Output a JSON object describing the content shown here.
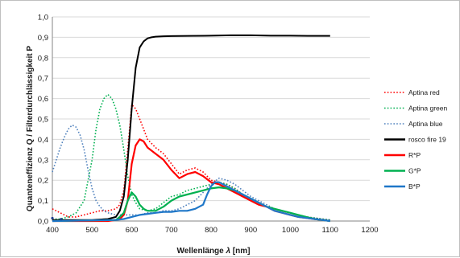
{
  "chart_data": {
    "type": "line",
    "xlabel_main": "Wellenlänge ",
    "xlabel_symbol": "λ",
    "xlabel_unit": " [nm]",
    "ylabel": "Quanteneffizienz Q / Filterdurchlässigkeit P",
    "xlim": [
      400,
      1200
    ],
    "ylim": [
      0,
      1.0
    ],
    "x_ticks": [
      "400",
      "500",
      "600",
      "700",
      "800",
      "900",
      "1000",
      "1100",
      "1200"
    ],
    "y_ticks": [
      "0,0",
      "0,1",
      "0,2",
      "0,3",
      "0,4",
      "0,5",
      "0,6",
      "0,7",
      "0,8",
      "0,9",
      "1,0"
    ],
    "grid": true,
    "legend_position": "right",
    "series": [
      {
        "name": "Aptina red",
        "color": "#ff0000",
        "style": "dotted",
        "x": [
          400,
          420,
          440,
          460,
          480,
          500,
          520,
          540,
          560,
          570,
          580,
          590,
          600,
          610,
          620,
          630,
          640,
          660,
          680,
          700,
          720,
          740,
          760,
          780,
          800,
          820,
          840,
          860,
          880,
          900,
          920,
          940,
          960,
          980,
          1000,
          1020,
          1040,
          1060,
          1080,
          1100
        ],
        "y": [
          0.06,
          0.04,
          0.02,
          0.02,
          0.03,
          0.04,
          0.05,
          0.05,
          0.06,
          0.08,
          0.15,
          0.35,
          0.57,
          0.55,
          0.5,
          0.45,
          0.4,
          0.36,
          0.33,
          0.28,
          0.23,
          0.25,
          0.26,
          0.24,
          0.2,
          0.19,
          0.18,
          0.16,
          0.13,
          0.11,
          0.09,
          0.07,
          0.06,
          0.05,
          0.04,
          0.03,
          0.02,
          0.015,
          0.01,
          0.005
        ]
      },
      {
        "name": "Aptina green",
        "color": "#00b050",
        "style": "dotted",
        "x": [
          400,
          420,
          440,
          460,
          480,
          500,
          510,
          520,
          530,
          540,
          550,
          560,
          570,
          580,
          590,
          600,
          610,
          620,
          640,
          660,
          680,
          700,
          720,
          740,
          760,
          780,
          800,
          820,
          840,
          860,
          880,
          900,
          920,
          940,
          960,
          980,
          1000,
          1020,
          1040,
          1060,
          1080,
          1100
        ],
        "y": [
          0.01,
          0.01,
          0.02,
          0.04,
          0.1,
          0.3,
          0.45,
          0.55,
          0.6,
          0.62,
          0.6,
          0.55,
          0.47,
          0.35,
          0.22,
          0.13,
          0.09,
          0.06,
          0.05,
          0.06,
          0.09,
          0.12,
          0.13,
          0.15,
          0.16,
          0.17,
          0.18,
          0.19,
          0.18,
          0.16,
          0.13,
          0.11,
          0.09,
          0.07,
          0.06,
          0.05,
          0.04,
          0.03,
          0.02,
          0.015,
          0.01,
          0.005
        ]
      },
      {
        "name": "Aptina blue",
        "color": "#4f81bd",
        "style": "dotted",
        "x": [
          400,
          410,
          420,
          430,
          440,
          450,
          460,
          470,
          480,
          490,
          500,
          510,
          520,
          530,
          540,
          560,
          580,
          600,
          620,
          640,
          660,
          680,
          700,
          720,
          740,
          760,
          780,
          800,
          820,
          840,
          860,
          880,
          900,
          920,
          940,
          960,
          980,
          1000,
          1020,
          1040,
          1060,
          1080,
          1100
        ],
        "y": [
          0.24,
          0.3,
          0.36,
          0.41,
          0.45,
          0.47,
          0.46,
          0.42,
          0.35,
          0.25,
          0.16,
          0.1,
          0.07,
          0.05,
          0.04,
          0.03,
          0.03,
          0.03,
          0.03,
          0.04,
          0.04,
          0.05,
          0.05,
          0.06,
          0.08,
          0.1,
          0.14,
          0.18,
          0.21,
          0.2,
          0.18,
          0.15,
          0.12,
          0.1,
          0.08,
          0.06,
          0.05,
          0.04,
          0.03,
          0.02,
          0.015,
          0.01,
          0.005
        ]
      },
      {
        "name": "rosco fire 19",
        "color": "#000000",
        "style": "solid",
        "x": [
          400,
          500,
          540,
          560,
          570,
          580,
          590,
          600,
          610,
          620,
          630,
          640,
          650,
          660,
          680,
          700,
          750,
          800,
          850,
          900,
          950,
          1000,
          1050,
          1100
        ],
        "y": [
          0.005,
          0.005,
          0.01,
          0.02,
          0.05,
          0.12,
          0.3,
          0.55,
          0.75,
          0.85,
          0.88,
          0.895,
          0.9,
          0.903,
          0.905,
          0.906,
          0.907,
          0.908,
          0.91,
          0.91,
          0.908,
          0.908,
          0.907,
          0.907
        ]
      },
      {
        "name": "R*P",
        "color": "#ff0000",
        "style": "solid",
        "x": [
          400,
          540,
          560,
          570,
          580,
          590,
          600,
          610,
          620,
          630,
          640,
          660,
          680,
          700,
          720,
          740,
          760,
          780,
          800,
          820,
          840,
          860,
          880,
          900,
          920,
          940,
          960,
          980,
          1000,
          1020,
          1040,
          1060,
          1080,
          1100
        ],
        "y": [
          0,
          0,
          0.005,
          0.01,
          0.03,
          0.1,
          0.28,
          0.37,
          0.4,
          0.39,
          0.36,
          0.33,
          0.3,
          0.25,
          0.21,
          0.23,
          0.24,
          0.22,
          0.19,
          0.18,
          0.16,
          0.14,
          0.12,
          0.1,
          0.08,
          0.07,
          0.05,
          0.04,
          0.03,
          0.02,
          0.015,
          0.01,
          0.005,
          0.0
        ]
      },
      {
        "name": "G*P",
        "color": "#00b050",
        "style": "solid",
        "x": [
          400,
          560,
          570,
          580,
          590,
          600,
          610,
          620,
          630,
          640,
          660,
          680,
          700,
          720,
          740,
          760,
          780,
          800,
          820,
          840,
          860,
          880,
          900,
          920,
          940,
          960,
          980,
          1000,
          1020,
          1040,
          1060,
          1080,
          1100
        ],
        "y": [
          0,
          0.005,
          0.02,
          0.04,
          0.1,
          0.14,
          0.12,
          0.08,
          0.06,
          0.05,
          0.05,
          0.07,
          0.1,
          0.12,
          0.13,
          0.14,
          0.15,
          0.16,
          0.165,
          0.16,
          0.15,
          0.13,
          0.11,
          0.09,
          0.07,
          0.06,
          0.05,
          0.04,
          0.03,
          0.02,
          0.01,
          0.005,
          0.0
        ]
      },
      {
        "name": "B*P",
        "color": "#1f77c8",
        "style": "solid",
        "x": [
          400,
          560,
          580,
          600,
          620,
          640,
          660,
          680,
          700,
          720,
          740,
          760,
          780,
          790,
          800,
          810,
          820,
          830,
          840,
          860,
          880,
          900,
          920,
          940,
          960,
          980,
          1000,
          1020,
          1040,
          1060,
          1080,
          1100
        ],
        "y": [
          0,
          0.005,
          0.01,
          0.02,
          0.03,
          0.035,
          0.04,
          0.045,
          0.045,
          0.05,
          0.05,
          0.06,
          0.08,
          0.13,
          0.17,
          0.19,
          0.19,
          0.18,
          0.17,
          0.15,
          0.13,
          0.11,
          0.09,
          0.07,
          0.05,
          0.04,
          0.03,
          0.02,
          0.015,
          0.01,
          0.005,
          0.0
        ]
      }
    ],
    "marker_points": [
      {
        "x": 400,
        "y": 0.01,
        "color": "#1f3f8f"
      },
      {
        "x": 422,
        "y": 0.005,
        "color": "#1f3f8f"
      }
    ]
  }
}
